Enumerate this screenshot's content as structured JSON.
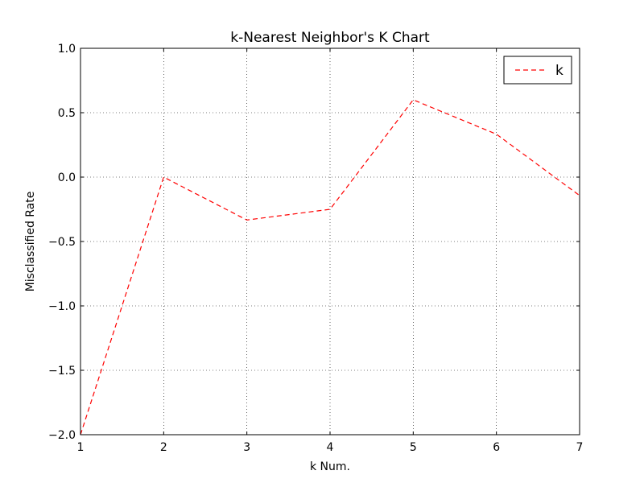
{
  "chart_data": {
    "type": "line",
    "title": "k-Nearest Neighbor's K Chart",
    "xlabel": "k Num.",
    "ylabel": "Misclassified Rate",
    "x": [
      1,
      2,
      3,
      4,
      5,
      6,
      7
    ],
    "series": [
      {
        "name": "k",
        "values": [
          -2.0,
          0.0,
          -0.333,
          -0.25,
          0.6,
          0.333,
          -0.143
        ],
        "color": "#ff0000",
        "line_style": "dashed"
      }
    ],
    "xlim": [
      1,
      7
    ],
    "ylim": [
      -2.0,
      1.0
    ],
    "xticks": [
      1,
      2,
      3,
      4,
      5,
      6,
      7
    ],
    "xtick_labels": [
      "1",
      "2",
      "3",
      "4",
      "5",
      "6",
      "7"
    ],
    "yticks": [
      -2.0,
      -1.5,
      -1.0,
      -0.5,
      0.0,
      0.5,
      1.0
    ],
    "ytick_labels": [
      "−2.0",
      "−1.5",
      "−1.0",
      "−0.5",
      "0.0",
      "0.5",
      "1.0"
    ],
    "grid": true,
    "grid_style": "dotted",
    "legend_position": "top-right"
  }
}
